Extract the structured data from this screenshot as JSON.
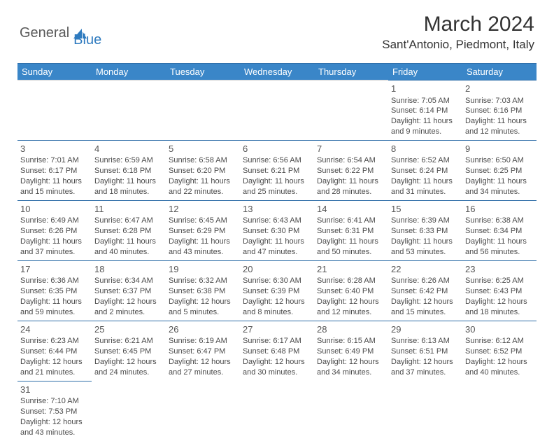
{
  "logo": {
    "general": "General",
    "blue": "Blue"
  },
  "title": "March 2024",
  "location": "Sant'Antonio, Piedmont, Italy",
  "colors": {
    "header_bg": "#3a86c8",
    "header_text": "#ffffff",
    "border": "#2f6ea8",
    "logo_blue": "#2f7bbf",
    "text": "#4a4a4a"
  },
  "weekday_headers": [
    "Sunday",
    "Monday",
    "Tuesday",
    "Wednesday",
    "Thursday",
    "Friday",
    "Saturday"
  ],
  "weeks": [
    [
      null,
      null,
      null,
      null,
      null,
      {
        "n": "1",
        "sr": "Sunrise: 7:05 AM",
        "ss": "Sunset: 6:14 PM",
        "dl1": "Daylight: 11 hours",
        "dl2": "and 9 minutes."
      },
      {
        "n": "2",
        "sr": "Sunrise: 7:03 AM",
        "ss": "Sunset: 6:16 PM",
        "dl1": "Daylight: 11 hours",
        "dl2": "and 12 minutes."
      }
    ],
    [
      {
        "n": "3",
        "sr": "Sunrise: 7:01 AM",
        "ss": "Sunset: 6:17 PM",
        "dl1": "Daylight: 11 hours",
        "dl2": "and 15 minutes."
      },
      {
        "n": "4",
        "sr": "Sunrise: 6:59 AM",
        "ss": "Sunset: 6:18 PM",
        "dl1": "Daylight: 11 hours",
        "dl2": "and 18 minutes."
      },
      {
        "n": "5",
        "sr": "Sunrise: 6:58 AM",
        "ss": "Sunset: 6:20 PM",
        "dl1": "Daylight: 11 hours",
        "dl2": "and 22 minutes."
      },
      {
        "n": "6",
        "sr": "Sunrise: 6:56 AM",
        "ss": "Sunset: 6:21 PM",
        "dl1": "Daylight: 11 hours",
        "dl2": "and 25 minutes."
      },
      {
        "n": "7",
        "sr": "Sunrise: 6:54 AM",
        "ss": "Sunset: 6:22 PM",
        "dl1": "Daylight: 11 hours",
        "dl2": "and 28 minutes."
      },
      {
        "n": "8",
        "sr": "Sunrise: 6:52 AM",
        "ss": "Sunset: 6:24 PM",
        "dl1": "Daylight: 11 hours",
        "dl2": "and 31 minutes."
      },
      {
        "n": "9",
        "sr": "Sunrise: 6:50 AM",
        "ss": "Sunset: 6:25 PM",
        "dl1": "Daylight: 11 hours",
        "dl2": "and 34 minutes."
      }
    ],
    [
      {
        "n": "10",
        "sr": "Sunrise: 6:49 AM",
        "ss": "Sunset: 6:26 PM",
        "dl1": "Daylight: 11 hours",
        "dl2": "and 37 minutes."
      },
      {
        "n": "11",
        "sr": "Sunrise: 6:47 AM",
        "ss": "Sunset: 6:28 PM",
        "dl1": "Daylight: 11 hours",
        "dl2": "and 40 minutes."
      },
      {
        "n": "12",
        "sr": "Sunrise: 6:45 AM",
        "ss": "Sunset: 6:29 PM",
        "dl1": "Daylight: 11 hours",
        "dl2": "and 43 minutes."
      },
      {
        "n": "13",
        "sr": "Sunrise: 6:43 AM",
        "ss": "Sunset: 6:30 PM",
        "dl1": "Daylight: 11 hours",
        "dl2": "and 47 minutes."
      },
      {
        "n": "14",
        "sr": "Sunrise: 6:41 AM",
        "ss": "Sunset: 6:31 PM",
        "dl1": "Daylight: 11 hours",
        "dl2": "and 50 minutes."
      },
      {
        "n": "15",
        "sr": "Sunrise: 6:39 AM",
        "ss": "Sunset: 6:33 PM",
        "dl1": "Daylight: 11 hours",
        "dl2": "and 53 minutes."
      },
      {
        "n": "16",
        "sr": "Sunrise: 6:38 AM",
        "ss": "Sunset: 6:34 PM",
        "dl1": "Daylight: 11 hours",
        "dl2": "and 56 minutes."
      }
    ],
    [
      {
        "n": "17",
        "sr": "Sunrise: 6:36 AM",
        "ss": "Sunset: 6:35 PM",
        "dl1": "Daylight: 11 hours",
        "dl2": "and 59 minutes."
      },
      {
        "n": "18",
        "sr": "Sunrise: 6:34 AM",
        "ss": "Sunset: 6:37 PM",
        "dl1": "Daylight: 12 hours",
        "dl2": "and 2 minutes."
      },
      {
        "n": "19",
        "sr": "Sunrise: 6:32 AM",
        "ss": "Sunset: 6:38 PM",
        "dl1": "Daylight: 12 hours",
        "dl2": "and 5 minutes."
      },
      {
        "n": "20",
        "sr": "Sunrise: 6:30 AM",
        "ss": "Sunset: 6:39 PM",
        "dl1": "Daylight: 12 hours",
        "dl2": "and 8 minutes."
      },
      {
        "n": "21",
        "sr": "Sunrise: 6:28 AM",
        "ss": "Sunset: 6:40 PM",
        "dl1": "Daylight: 12 hours",
        "dl2": "and 12 minutes."
      },
      {
        "n": "22",
        "sr": "Sunrise: 6:26 AM",
        "ss": "Sunset: 6:42 PM",
        "dl1": "Daylight: 12 hours",
        "dl2": "and 15 minutes."
      },
      {
        "n": "23",
        "sr": "Sunrise: 6:25 AM",
        "ss": "Sunset: 6:43 PM",
        "dl1": "Daylight: 12 hours",
        "dl2": "and 18 minutes."
      }
    ],
    [
      {
        "n": "24",
        "sr": "Sunrise: 6:23 AM",
        "ss": "Sunset: 6:44 PM",
        "dl1": "Daylight: 12 hours",
        "dl2": "and 21 minutes."
      },
      {
        "n": "25",
        "sr": "Sunrise: 6:21 AM",
        "ss": "Sunset: 6:45 PM",
        "dl1": "Daylight: 12 hours",
        "dl2": "and 24 minutes."
      },
      {
        "n": "26",
        "sr": "Sunrise: 6:19 AM",
        "ss": "Sunset: 6:47 PM",
        "dl1": "Daylight: 12 hours",
        "dl2": "and 27 minutes."
      },
      {
        "n": "27",
        "sr": "Sunrise: 6:17 AM",
        "ss": "Sunset: 6:48 PM",
        "dl1": "Daylight: 12 hours",
        "dl2": "and 30 minutes."
      },
      {
        "n": "28",
        "sr": "Sunrise: 6:15 AM",
        "ss": "Sunset: 6:49 PM",
        "dl1": "Daylight: 12 hours",
        "dl2": "and 34 minutes."
      },
      {
        "n": "29",
        "sr": "Sunrise: 6:13 AM",
        "ss": "Sunset: 6:51 PM",
        "dl1": "Daylight: 12 hours",
        "dl2": "and 37 minutes."
      },
      {
        "n": "30",
        "sr": "Sunrise: 6:12 AM",
        "ss": "Sunset: 6:52 PM",
        "dl1": "Daylight: 12 hours",
        "dl2": "and 40 minutes."
      }
    ],
    [
      {
        "n": "31",
        "sr": "Sunrise: 7:10 AM",
        "ss": "Sunset: 7:53 PM",
        "dl1": "Daylight: 12 hours",
        "dl2": "and 43 minutes."
      },
      null,
      null,
      null,
      null,
      null,
      null
    ]
  ]
}
